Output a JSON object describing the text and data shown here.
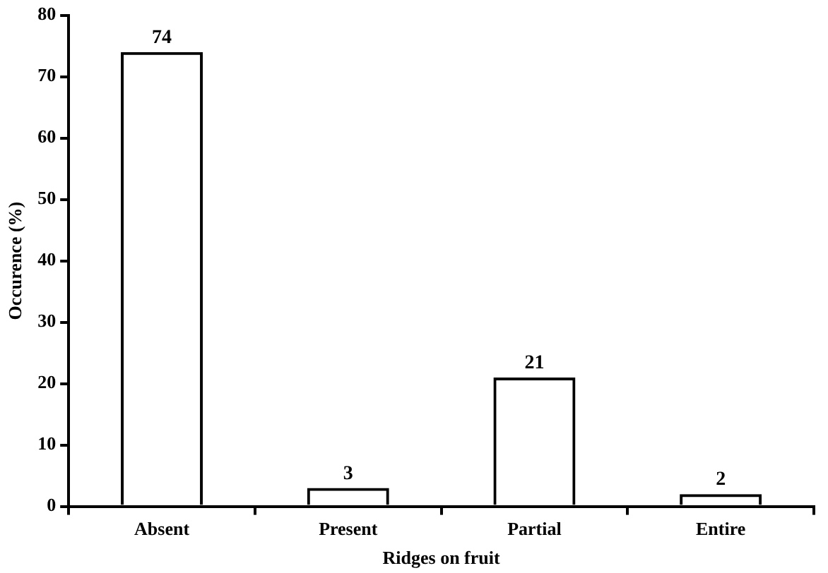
{
  "chart_data": {
    "type": "bar",
    "xlabel": "Ridges on fruit",
    "ylabel": "Occurence (%)",
    "categories": [
      "Absent",
      "Present",
      "Partial",
      "Entire"
    ],
    "values": [
      74,
      3,
      21,
      2
    ],
    "color": "#000000",
    "data_labels": true,
    "ylim": [
      0,
      80
    ],
    "yticks": [
      0,
      10,
      20,
      30,
      40,
      50,
      60,
      70,
      80
    ],
    "grid": false,
    "legend": false
  }
}
